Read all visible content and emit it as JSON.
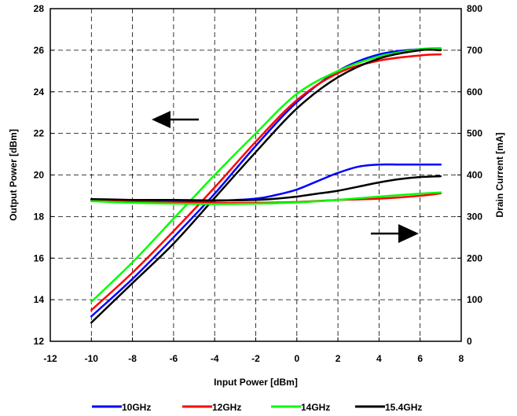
{
  "chart_data": {
    "type": "line",
    "title": "",
    "xlabel": "Input Power  [dBm]",
    "ylabel_left": "Output Power  [dBm]",
    "ylabel_right": "Drain Current  [mA]",
    "xlim": [
      -12,
      8
    ],
    "ylim_left": [
      12,
      28
    ],
    "ylim_right": [
      0,
      800
    ],
    "x_ticks": [
      -12,
      -10,
      -8,
      -6,
      -4,
      -2,
      0,
      2,
      4,
      6,
      8
    ],
    "y_left_ticks": [
      12,
      14,
      16,
      18,
      20,
      22,
      24,
      26,
      28
    ],
    "y_right_ticks": [
      0,
      100,
      200,
      300,
      400,
      500,
      600,
      700,
      800
    ],
    "grid": true,
    "legend_position": "bottom",
    "series": [
      {
        "name": "10GHz",
        "color": "#0000ff",
        "axis": "left",
        "x": [
          -10,
          -8,
          -6,
          -4,
          -2,
          0,
          2,
          4,
          6,
          7
        ],
        "y": [
          13.2,
          15.0,
          17.0,
          19.1,
          21.4,
          23.5,
          25.0,
          25.8,
          26.05,
          26.05
        ]
      },
      {
        "name": "12GHz",
        "color": "#ff0000",
        "axis": "left",
        "x": [
          -10,
          -8,
          -6,
          -4,
          -2,
          0,
          2,
          4,
          6,
          7
        ],
        "y": [
          13.5,
          15.3,
          17.3,
          19.4,
          21.6,
          23.6,
          24.9,
          25.5,
          25.75,
          25.8
        ]
      },
      {
        "name": "14GHz",
        "color": "#00ff00",
        "axis": "left",
        "x": [
          -10,
          -8,
          -6,
          -4,
          -2,
          0,
          2,
          4,
          6,
          7
        ],
        "y": [
          13.9,
          15.8,
          17.9,
          20.0,
          22.0,
          23.9,
          25.0,
          25.7,
          26.05,
          26.1
        ]
      },
      {
        "name": "15.4GHz",
        "color": "#000000",
        "axis": "left",
        "x": [
          -10,
          -8,
          -6,
          -4,
          -2,
          0,
          2,
          4,
          6,
          7
        ],
        "y": [
          12.9,
          14.8,
          16.7,
          18.9,
          21.1,
          23.2,
          24.7,
          25.6,
          26.0,
          26.0
        ]
      },
      {
        "name": "10GHz",
        "color": "#0000ff",
        "axis": "right",
        "x": [
          -10,
          -8,
          -6,
          -4,
          -2,
          -1,
          0,
          1,
          2,
          3,
          4,
          5,
          6,
          7
        ],
        "y": [
          340,
          338,
          338,
          338,
          343,
          352,
          365,
          385,
          405,
          420,
          425,
          425,
          425,
          425
        ]
      },
      {
        "name": "12GHz",
        "color": "#ff0000",
        "axis": "right",
        "x": [
          -10,
          -8,
          -6,
          -4,
          -2,
          0,
          2,
          4,
          6,
          7
        ],
        "y": [
          338,
          336,
          334,
          333,
          333,
          335,
          340,
          343,
          350,
          356
        ]
      },
      {
        "name": "14GHz",
        "color": "#00ff00",
        "axis": "right",
        "x": [
          -10,
          -8,
          -6,
          -4,
          -2,
          0,
          2,
          4,
          6,
          7
        ],
        "y": [
          337,
          333,
          331,
          330,
          331,
          334,
          340,
          348,
          355,
          358
        ]
      },
      {
        "name": "15.4GHz",
        "color": "#000000",
        "axis": "right",
        "x": [
          -10,
          -8,
          -6,
          -4,
          -2,
          -1,
          0,
          1,
          2,
          3,
          4,
          5,
          6,
          7
        ],
        "y": [
          342,
          340,
          340,
          339,
          340,
          343,
          348,
          355,
          362,
          372,
          382,
          390,
          395,
          397
        ]
      }
    ],
    "annotations": [
      {
        "type": "arrow",
        "direction": "left",
        "refers_to": "left axis"
      },
      {
        "type": "arrow",
        "direction": "right",
        "refers_to": "right axis"
      }
    ]
  }
}
